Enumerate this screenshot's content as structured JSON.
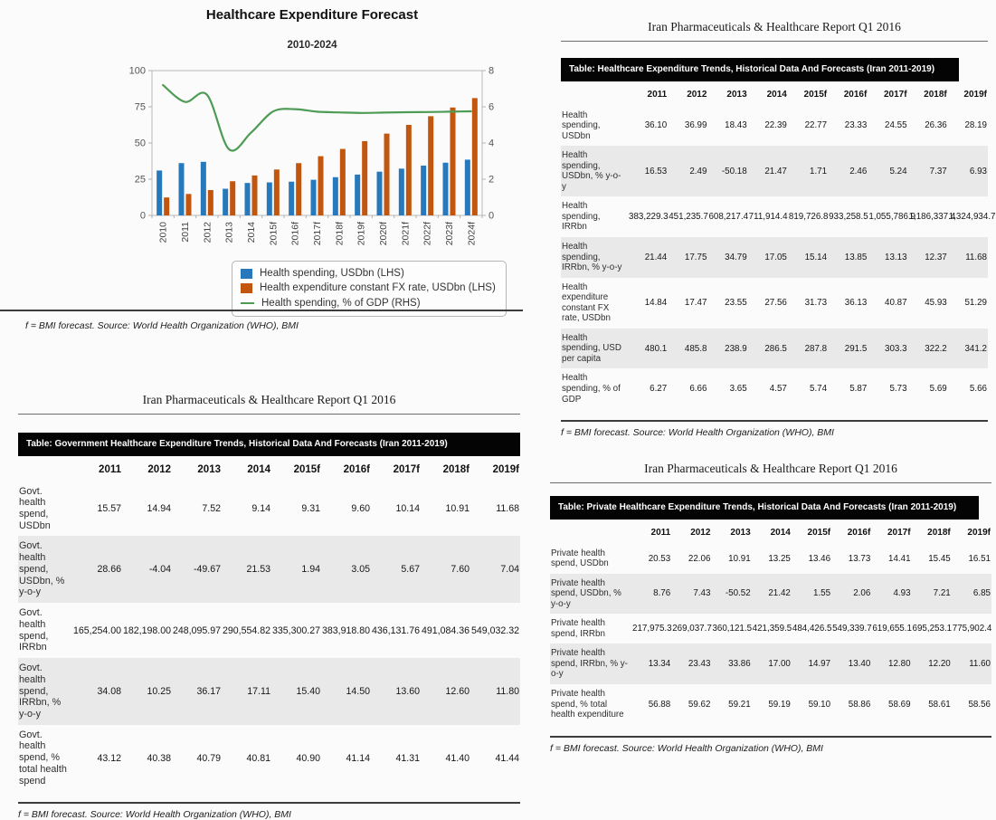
{
  "chart": {
    "title": "Healthcare Expenditure Forecast",
    "subtitle": "2010-2024",
    "footnote": "f = BMI forecast. Source: World Health Organization (WHO), BMI",
    "legend": [
      {
        "label": "Health spending, USDbn (LHS)",
        "type": "bar",
        "color": "#2878BC"
      },
      {
        "label": "Health expenditure constant FX rate, USDbn (LHS)",
        "type": "bar",
        "color": "#C3560E"
      },
      {
        "label": "Health spending, % of GDP (RHS)",
        "type": "line",
        "color": "#4D9B55"
      }
    ]
  },
  "chart_data": {
    "type": "bar",
    "title": "Healthcare Expenditure Forecast",
    "subtitle": "2010-2024",
    "categories": [
      "2010",
      "2011",
      "2012",
      "2013",
      "2014",
      "2015f",
      "2016f",
      "2017f",
      "2018f",
      "2019f",
      "2020f",
      "2021f",
      "2022f",
      "2023f",
      "2024f"
    ],
    "series": [
      {
        "name": "Health spending, USDbn (LHS)",
        "type": "bar",
        "axis": "left",
        "color": "#2878BC",
        "values": [
          31.0,
          36.1,
          37.0,
          18.4,
          22.4,
          22.8,
          23.3,
          24.6,
          26.4,
          28.2,
          30.2,
          32.3,
          34.4,
          36.4,
          38.5
        ]
      },
      {
        "name": "Health expenditure constant FX rate, USDbn (LHS)",
        "type": "bar",
        "axis": "left",
        "color": "#C3560E",
        "values": [
          12.4,
          14.8,
          17.5,
          23.6,
          27.6,
          31.7,
          36.1,
          40.9,
          45.9,
          51.3,
          56.5,
          62.5,
          68.5,
          74.5,
          81.0
        ]
      },
      {
        "name": "Health spending, % of GDP (RHS)",
        "type": "line",
        "axis": "right",
        "color": "#4D9B55",
        "values": [
          7.2,
          6.27,
          6.66,
          3.65,
          4.57,
          5.74,
          5.87,
          5.73,
          5.69,
          5.66,
          5.68,
          5.7,
          5.71,
          5.73,
          5.75
        ]
      }
    ],
    "left_axis": {
      "range": [
        0,
        100
      ],
      "ticks": [
        0,
        25,
        50,
        75,
        100
      ]
    },
    "right_axis": {
      "range": [
        0,
        8
      ],
      "ticks": [
        0,
        2,
        4,
        6,
        8
      ]
    },
    "grid": false,
    "legend_position": "bottom"
  },
  "tables": {
    "overall": {
      "report_header": "Iran Pharmaceuticals & Healthcare Report Q1 2016",
      "title": "Table: Healthcare Expenditure Trends, Historical Data And Forecasts (Iran 2011-2019)",
      "columns": [
        "2011",
        "2012",
        "2013",
        "2014",
        "2015f",
        "2016f",
        "2017f",
        "2018f",
        "2019f"
      ],
      "rows": [
        {
          "label": "Health spending, USDbn",
          "values": [
            "36.10",
            "36.99",
            "18.43",
            "22.39",
            "22.77",
            "23.33",
            "24.55",
            "26.36",
            "28.19"
          ]
        },
        {
          "label": "Health spending, USDbn, % y-o-y",
          "values": [
            "16.53",
            "2.49",
            "-50.18",
            "21.47",
            "1.71",
            "2.46",
            "5.24",
            "7.37",
            "6.93"
          ]
        },
        {
          "label": "Health spending, IRRbn",
          "values": [
            "383,229.3",
            "451,235.7",
            "608,217.4",
            "711,914.4",
            "819,726.8",
            "933,258.5",
            "1,055,786.9",
            "1,186,337.4",
            "1,324,934.7"
          ]
        },
        {
          "label": "Health spending, IRRbn, % y-o-y",
          "values": [
            "21.44",
            "17.75",
            "34.79",
            "17.05",
            "15.14",
            "13.85",
            "13.13",
            "12.37",
            "11.68"
          ]
        },
        {
          "label": "Health expenditure constant FX rate, USDbn",
          "values": [
            "14.84",
            "17.47",
            "23.55",
            "27.56",
            "31.73",
            "36.13",
            "40.87",
            "45.93",
            "51.29"
          ]
        },
        {
          "label": "Health spending, USD per capita",
          "values": [
            "480.1",
            "485.8",
            "238.9",
            "286.5",
            "287.8",
            "291.5",
            "303.3",
            "322.2",
            "341.2"
          ]
        },
        {
          "label": "Health spending, % of GDP",
          "values": [
            "6.27",
            "6.66",
            "3.65",
            "4.57",
            "5.74",
            "5.87",
            "5.73",
            "5.69",
            "5.66"
          ]
        }
      ],
      "footnote": "f = BMI forecast. Source: World Health Organization (WHO), BMI"
    },
    "government": {
      "report_header": "Iran Pharmaceuticals & Healthcare Report Q1 2016",
      "title": "Table: Government Healthcare Expenditure Trends, Historical Data And Forecasts (Iran 2011-2019)",
      "columns": [
        "2011",
        "2012",
        "2013",
        "2014",
        "2015f",
        "2016f",
        "2017f",
        "2018f",
        "2019f"
      ],
      "rows": [
        {
          "label": "Govt. health spend, USDbn",
          "values": [
            "15.57",
            "14.94",
            "7.52",
            "9.14",
            "9.31",
            "9.60",
            "10.14",
            "10.91",
            "11.68"
          ]
        },
        {
          "label": "Govt. health spend, USDbn, % y-o-y",
          "values": [
            "28.66",
            "-4.04",
            "-49.67",
            "21.53",
            "1.94",
            "3.05",
            "5.67",
            "7.60",
            "7.04"
          ]
        },
        {
          "label": "Govt. health spend, IRRbn",
          "values": [
            "165,254.00",
            "182,198.00",
            "248,095.97",
            "290,554.82",
            "335,300.27",
            "383,918.80",
            "436,131.76",
            "491,084.36",
            "549,032.32"
          ]
        },
        {
          "label": "Govt. health spend, IRRbn, % y-o-y",
          "values": [
            "34.08",
            "10.25",
            "36.17",
            "17.11",
            "15.40",
            "14.50",
            "13.60",
            "12.60",
            "11.80"
          ]
        },
        {
          "label": "Govt. health spend, % total health spend",
          "values": [
            "43.12",
            "40.38",
            "40.79",
            "40.81",
            "40.90",
            "41.14",
            "41.31",
            "41.40",
            "41.44"
          ]
        }
      ],
      "footnote": "f = BMI forecast. Source: World Health Organization (WHO), BMI"
    },
    "private": {
      "report_header": "Iran Pharmaceuticals & Healthcare Report Q1 2016",
      "title": "Table: Private Healthcare Expenditure Trends, Historical Data And Forecasts (Iran 2011-2019)",
      "columns": [
        "2011",
        "2012",
        "2013",
        "2014",
        "2015f",
        "2016f",
        "2017f",
        "2018f",
        "2019f"
      ],
      "rows": [
        {
          "label": "Private health spend, USDbn",
          "values": [
            "20.53",
            "22.06",
            "10.91",
            "13.25",
            "13.46",
            "13.73",
            "14.41",
            "15.45",
            "16.51"
          ]
        },
        {
          "label": "Private health spend, USDbn, % y-o-y",
          "values": [
            "8.76",
            "7.43",
            "-50.52",
            "21.42",
            "1.55",
            "2.06",
            "4.93",
            "7.21",
            "6.85"
          ]
        },
        {
          "label": "Private health spend, IRRbn",
          "values": [
            "217,975.3",
            "269,037.7",
            "360,121.5",
            "421,359.5",
            "484,426.5",
            "549,339.7",
            "619,655.1",
            "695,253.1",
            "775,902.4"
          ]
        },
        {
          "label": "Private health spend, IRRbn, % y-o-y",
          "values": [
            "13.34",
            "23.43",
            "33.86",
            "17.00",
            "14.97",
            "13.40",
            "12.80",
            "12.20",
            "11.60"
          ]
        },
        {
          "label": "Private health spend, % total health expenditure",
          "values": [
            "56.88",
            "59.62",
            "59.21",
            "59.19",
            "59.10",
            "58.86",
            "58.69",
            "58.61",
            "58.56"
          ]
        }
      ],
      "footnote": "f = BMI forecast. Source: World Health Organization (WHO), BMI"
    }
  },
  "style_colors": {
    "bar_blue": "#2878BC",
    "bar_orange": "#C3560E",
    "line_green": "#4D9B55",
    "table_title_bar_bg": "#040404",
    "table_title_bar_text": "#ffffff",
    "row_stripe": "#e9e9e9"
  }
}
